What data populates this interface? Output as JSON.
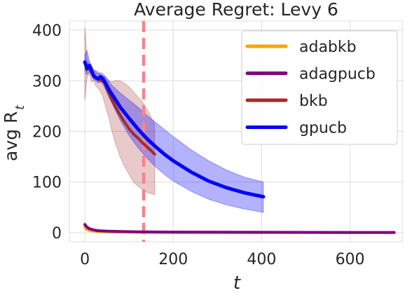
{
  "chart_data": {
    "type": "line",
    "title": "Average Regret: Levy 6",
    "xlabel": "t",
    "ylabel": "avg R",
    "ylabel_subscript": "t",
    "xlim": [
      -35,
      718
    ],
    "ylim": [
      -18,
      418
    ],
    "xticks": [
      0,
      200,
      400,
      600
    ],
    "yticks": [
      0,
      100,
      200,
      300,
      400
    ],
    "xtick_labels": [
      "0",
      "200",
      "400",
      "600"
    ],
    "ytick_labels": [
      "0",
      "100",
      "200",
      "300",
      "400"
    ],
    "grid": true,
    "legend_position": "top-right",
    "vline": {
      "x": 133,
      "color": "#f4858e"
    },
    "series": [
      {
        "name": "adabkb",
        "color": "#f5a50a",
        "x": [
          0,
          5,
          10,
          20,
          30,
          50,
          80,
          120,
          200,
          300,
          400,
          500,
          600,
          700
        ],
        "y": [
          11,
          7,
          5,
          3.5,
          2.5,
          1.8,
          1.2,
          0.9,
          0.6,
          0.5,
          0.4,
          0.35,
          0.3,
          0.3
        ],
        "lower": [
          5,
          3,
          2,
          1.5,
          1,
          0.8,
          0.5,
          0.4,
          0.3,
          0.2,
          0.2,
          0.1,
          0.1,
          0.1
        ],
        "upper": [
          17,
          11,
          8,
          5.5,
          4,
          2.8,
          1.9,
          1.4,
          0.9,
          0.8,
          0.6,
          0.6,
          0.5,
          0.5
        ]
      },
      {
        "name": "adagpucb",
        "color": "#800080",
        "x": [
          0,
          5,
          10,
          20,
          30,
          50,
          80,
          120,
          200,
          300,
          400,
          500,
          600,
          700
        ],
        "y": [
          16,
          11,
          8,
          5.5,
          4,
          3,
          2.3,
          1.8,
          1.3,
          1,
          0.8,
          0.7,
          0.6,
          0.6
        ],
        "lower": [
          12,
          8,
          6,
          4,
          3,
          2.2,
          1.6,
          1.2,
          0.9,
          0.7,
          0.5,
          0.5,
          0.4,
          0.4
        ],
        "upper": [
          20,
          14,
          10,
          7,
          5,
          3.8,
          3,
          2.4,
          1.7,
          1.3,
          1.1,
          0.9,
          0.8,
          0.8
        ]
      },
      {
        "name": "bkb",
        "color": "#a52a2a",
        "x": [
          0,
          5,
          10,
          15,
          20,
          25,
          30,
          35,
          40,
          45,
          50,
          55,
          60,
          70,
          80,
          90,
          100,
          110,
          120,
          130,
          140,
          150,
          158
        ],
        "y": [
          335,
          322,
          325,
          318,
          310,
          305,
          303,
          301,
          300,
          296,
          285,
          275,
          265,
          248,
          232,
          218,
          205,
          195,
          187,
          178,
          170,
          162,
          155
        ],
        "lower": [
          262,
          305,
          315,
          298,
          300,
          290,
          285,
          280,
          270,
          255,
          240,
          225,
          205,
          175,
          150,
          130,
          115,
          100,
          92,
          85,
          80,
          77,
          75
        ],
        "upper": [
          405,
          345,
          335,
          330,
          320,
          320,
          318,
          312,
          310,
          308,
          305,
          300,
          298,
          300,
          300,
          295,
          288,
          278,
          268,
          258,
          245,
          228,
          215
        ]
      },
      {
        "name": "gpucb",
        "color": "#0000ff",
        "x": [
          0,
          5,
          10,
          15,
          20,
          25,
          30,
          35,
          40,
          45,
          50,
          55,
          60,
          70,
          80,
          100,
          120,
          140,
          160,
          180,
          200,
          240,
          280,
          320,
          360,
          404
        ],
        "y": [
          337,
          325,
          330,
          320,
          310,
          306,
          304,
          308,
          305,
          298,
          290,
          282,
          275,
          262,
          248,
          226,
          205,
          186,
          170,
          155,
          142,
          120,
          102,
          89,
          79,
          71
        ],
        "lower": [
          320,
          312,
          318,
          310,
          302,
          300,
          296,
          298,
          295,
          286,
          276,
          266,
          258,
          240,
          222,
          192,
          168,
          148,
          130,
          115,
          102,
          82,
          66,
          55,
          47,
          40
        ],
        "upper": [
          352,
          360,
          340,
          330,
          322,
          318,
          314,
          316,
          314,
          310,
          304,
          298,
          292,
          284,
          276,
          262,
          248,
          232,
          218,
          204,
          190,
          164,
          142,
          124,
          110,
          100
        ]
      }
    ]
  }
}
